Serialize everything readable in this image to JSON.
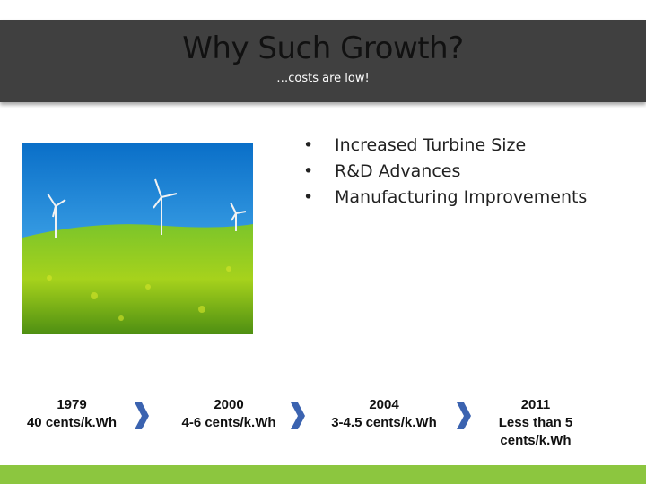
{
  "header": {
    "title": "Why Such Growth?",
    "subtitle": "…costs are low!"
  },
  "bullets": [
    "Increased Turbine Size",
    "R&D Advances",
    "Manufacturing Improvements"
  ],
  "timeline": [
    {
      "year": "1979",
      "cost": "40 cents/k.Wh"
    },
    {
      "year": "2000",
      "cost": "4-6 cents/k.Wh"
    },
    {
      "year": "2004",
      "cost": "3-4.5 cents/k.Wh"
    },
    {
      "year": "2011",
      "cost": "Less than 5 cents/k.Wh"
    }
  ]
}
